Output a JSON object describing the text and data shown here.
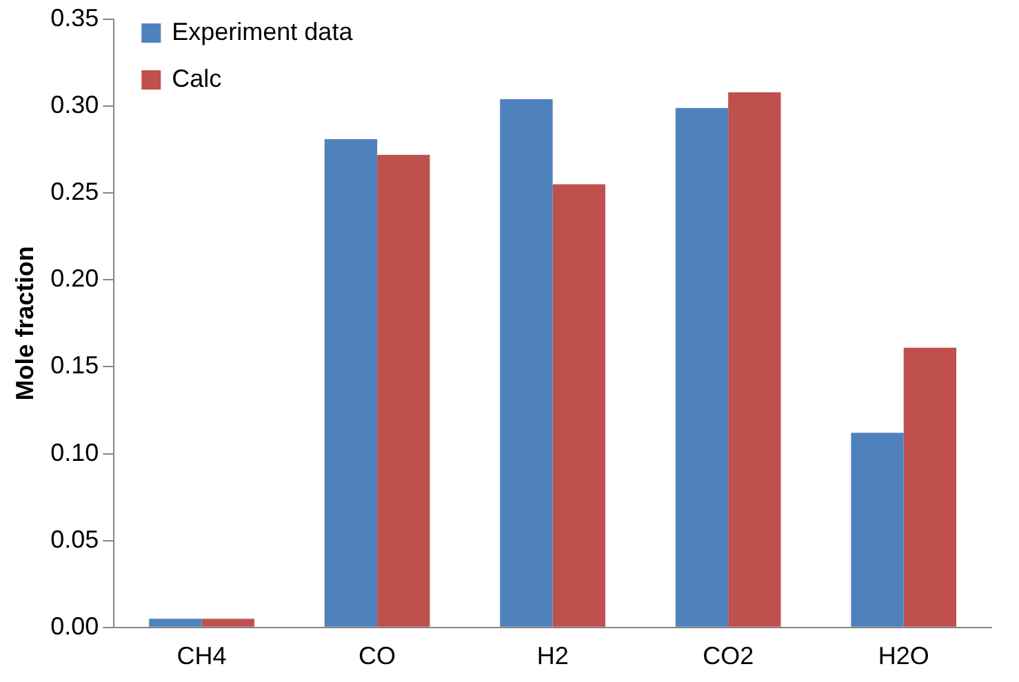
{
  "chart_data": {
    "type": "bar",
    "ylabel": "Mole fraction",
    "categories": [
      "CH4",
      "CO",
      "H2",
      "CO2",
      "H2O"
    ],
    "series": [
      {
        "name": "Experiment data",
        "color": "#4f81bd",
        "values": [
          0.005,
          0.281,
          0.304,
          0.299,
          0.112
        ]
      },
      {
        "name": "Calc",
        "color": "#c0504d",
        "values": [
          0.005,
          0.272,
          0.255,
          0.308,
          0.161
        ]
      }
    ],
    "ylim": [
      0,
      0.35
    ],
    "yticks": [
      {
        "value": 0,
        "label": "0.00"
      },
      {
        "value": 0.05,
        "label": "0.05"
      },
      {
        "value": 0.1,
        "label": "0.10"
      },
      {
        "value": 0.15,
        "label": "0.15"
      },
      {
        "value": 0.2,
        "label": "0.20"
      },
      {
        "value": 0.25,
        "label": "0.25"
      },
      {
        "value": 0.3,
        "label": "0.30"
      },
      {
        "value": 0.35,
        "label": "0.35"
      }
    ],
    "grid": false,
    "legend": "top left"
  }
}
